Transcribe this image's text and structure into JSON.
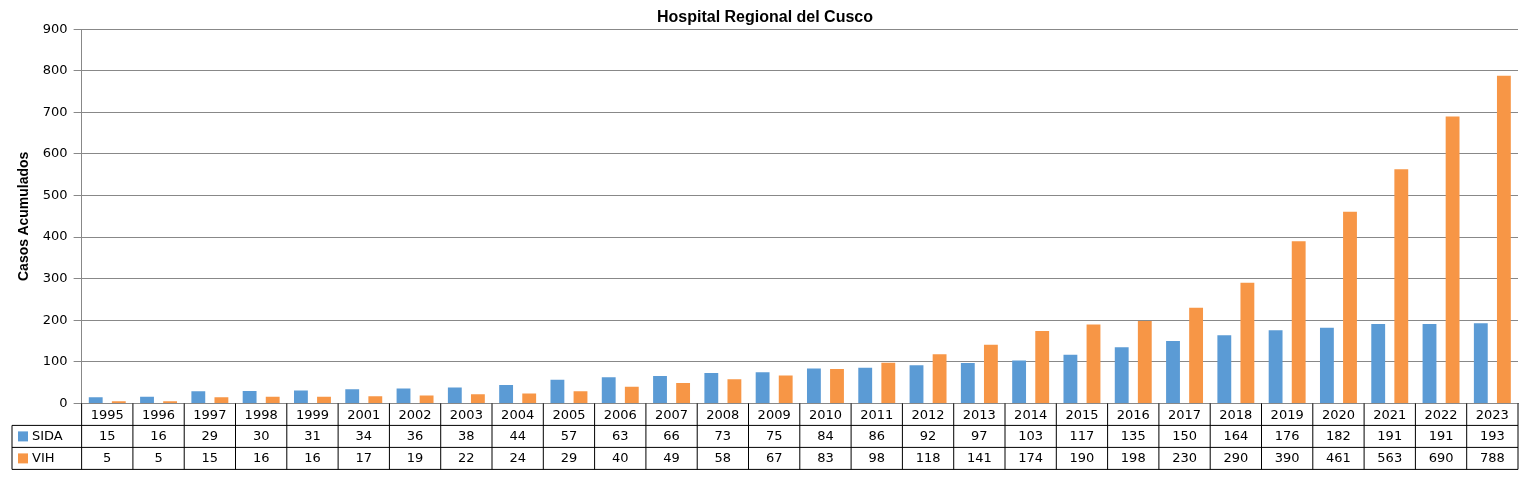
{
  "chart_data": {
    "type": "bar",
    "title": "Hospital Regional del Cusco",
    "ylabel": "Casos Acumulados",
    "categories": [
      "1995",
      "1996",
      "1997",
      "1998",
      "1999",
      "2001",
      "2002",
      "2003",
      "2004",
      "2005",
      "2006",
      "2007",
      "2008",
      "2009",
      "2010",
      "2011",
      "2012",
      "2013",
      "2014",
      "2015",
      "2016",
      "2017",
      "2018",
      "2019",
      "2020",
      "2021",
      "2022",
      "2023"
    ],
    "series": [
      {
        "name": "SIDA",
        "color": "#5b9bd5",
        "values": [
          15,
          16,
          29,
          30,
          31,
          34,
          36,
          38,
          44,
          57,
          63,
          66,
          73,
          75,
          84,
          86,
          92,
          97,
          103,
          117,
          135,
          150,
          164,
          176,
          182,
          191,
          191,
          193
        ]
      },
      {
        "name": "VIH",
        "color": "#f79646",
        "values": [
          5,
          5,
          15,
          16,
          16,
          17,
          19,
          22,
          24,
          29,
          40,
          49,
          58,
          67,
          83,
          98,
          118,
          141,
          174,
          190,
          198,
          230,
          290,
          390,
          461,
          563,
          690,
          788
        ]
      }
    ],
    "ylim": [
      0,
      900
    ],
    "yticks": [
      0,
      100,
      200,
      300,
      400,
      500,
      600,
      700,
      800,
      900
    ],
    "grid": "y",
    "legend": "bottom",
    "data_labels": true
  }
}
